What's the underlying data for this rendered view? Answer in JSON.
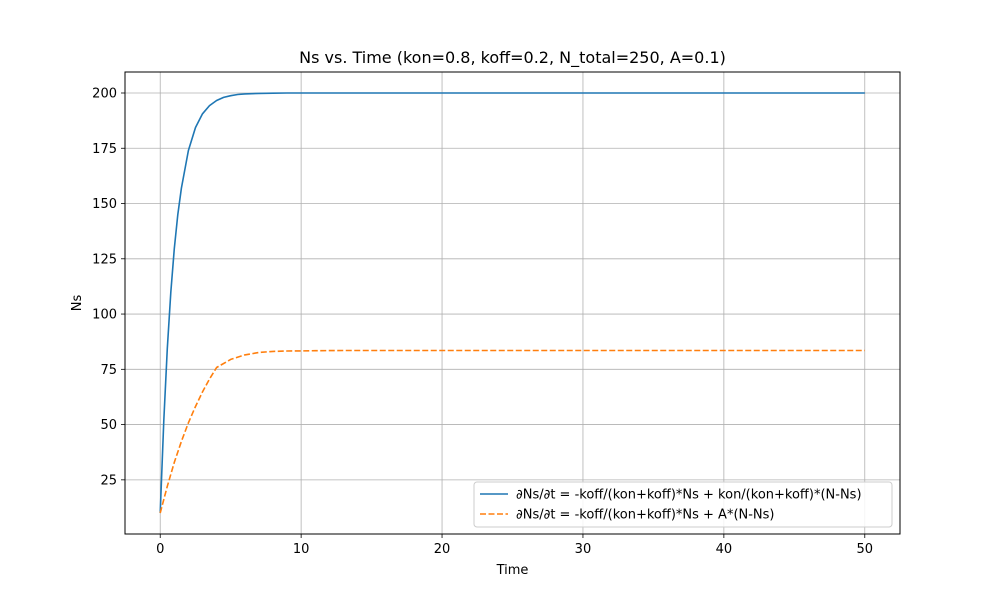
{
  "chart_data": {
    "type": "line",
    "title": "Ns vs. Time (kon=0.8, koff=0.2, N_total=250, A=0.1)",
    "xlabel": "Time",
    "ylabel": "Ns",
    "xlim": [
      -2.5,
      52.5
    ],
    "ylim": [
      0.5,
      209.5
    ],
    "xticks": [
      0,
      10,
      20,
      30,
      40,
      50
    ],
    "yticks": [
      25,
      50,
      75,
      100,
      125,
      150,
      175,
      200
    ],
    "grid": true,
    "legend_position": "lower-right",
    "series": [
      {
        "name": "∂Ns/∂t = -koff/(kon+koff)*Ns + kon/(kon+koff)*(N-Ns)",
        "color": "#1f77b4",
        "dash": "solid",
        "x": [
          0,
          0.25,
          0.5,
          0.75,
          1,
          1.25,
          1.5,
          2,
          2.5,
          3,
          3.5,
          4,
          4.5,
          5,
          5.5,
          6,
          7,
          8,
          9,
          10,
          12,
          15,
          20,
          25,
          30,
          35,
          40,
          45,
          50
        ],
        "y": [
          10,
          51.8,
          84.4,
          109.8,
          129.6,
          145.0,
          157.0,
          174.0,
          184.4,
          190.6,
          194.3,
          196.6,
          198.0,
          198.8,
          199.3,
          199.6,
          199.8,
          199.9,
          200,
          200,
          200,
          200,
          200,
          200,
          200,
          200,
          200,
          200,
          200
        ]
      },
      {
        "name": "∂Ns/∂t = -koff/(kon+koff)*Ns + A*(N-Ns)",
        "color": "#ff7f0e",
        "dash": "dashed",
        "x": [
          0,
          0.5,
          1,
          1.5,
          2,
          2.5,
          3,
          3.5,
          4,
          5,
          6,
          7,
          8,
          9,
          10,
          11,
          12,
          13,
          14,
          15,
          17,
          20,
          25,
          30,
          35,
          40,
          45,
          50
        ],
        "y": [
          10,
          22.1,
          32.9,
          42.4,
          50.8,
          58.2,
          64.8,
          70.6,
          75.8,
          79.5,
          81.5,
          82.6,
          83.1,
          83.3,
          83.35,
          83.4,
          83.45,
          83.5,
          83.5,
          83.5,
          83.5,
          83.5,
          83.5,
          83.5,
          83.5,
          83.5,
          83.5,
          83.5
        ]
      }
    ]
  }
}
